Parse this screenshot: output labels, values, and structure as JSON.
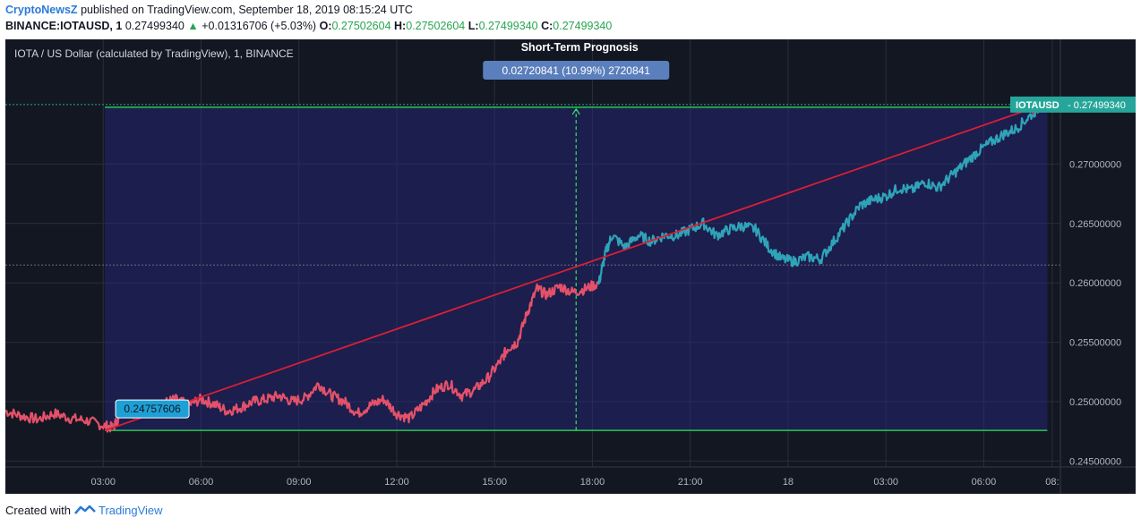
{
  "header": {
    "publisher": "CryptoNewsZ",
    "published_text": "published on TradingView.com, September 18, 2019 08:15:24 UTC",
    "symbol": "BINANCE:IOTAUSD, 1",
    "last": "0.27499340",
    "change_arrow": "▲",
    "change": "+0.01316706 (+5.03%)",
    "o_label": "O:",
    "o": "0.27502604",
    "h_label": "H:",
    "h": "0.27502604",
    "l_label": "L:",
    "l": "0.27499340",
    "c_label": "C:",
    "c": "0.27499340"
  },
  "colors": {
    "background": "#131722",
    "up": "#26a650",
    "brand": "#2a7ad9",
    "series_before": "#e4516a",
    "series_after": "#2fa3b8",
    "trend_arrow": "#d91f36",
    "range_line": "#2ee85a",
    "badge_teal": "#26a69a",
    "badge_blue": "#5b7fbd",
    "badge_start": "#1ea0d6"
  },
  "chart_data": {
    "type": "line",
    "title": "Short-Term Prognosis",
    "series_label": "IOTA / US Dollar (calculated by TradingView), 1, BINANCE",
    "last_price_label": {
      "symbol": "IOTAUSD",
      "value": "0.27499340"
    },
    "measure_label": "0.02720841 (10.99%) 2720841",
    "start_label": "0.24757606",
    "x_ticks": [
      "03:00",
      "06:00",
      "09:00",
      "12:00",
      "15:00",
      "18:00",
      "21:00",
      "18",
      "03:00",
      "06:00",
      "08:"
    ],
    "y_ticks": [
      "0.24500000",
      "0.25000000",
      "0.25500000",
      "0.26000000",
      "0.26500000",
      "0.27000000"
    ],
    "ylim": [
      0.2445,
      0.2805
    ],
    "xlim": [
      0.0,
      32.35
    ],
    "grid": true,
    "range_low": 0.24757606,
    "range_high": 0.27478447,
    "measure_x": 17.5,
    "split_x": 18.2,
    "trend": {
      "x": [
        3.05,
        31.8
      ],
      "y": [
        0.24757606,
        0.2749934
      ]
    },
    "series": [
      {
        "x": [
          0.0,
          0.5,
          1.0,
          1.5,
          2.0,
          2.5,
          3.0,
          3.3,
          3.6,
          4.0,
          4.4,
          4.8,
          5.2,
          5.6,
          6.0,
          6.4,
          6.8,
          7.2,
          7.6,
          8.0,
          8.4,
          8.8,
          9.2,
          9.6,
          10.0,
          10.4,
          10.8,
          11.2,
          11.6,
          12.0,
          12.4,
          12.8,
          13.2,
          13.6,
          14.0,
          14.4,
          14.8,
          15.2,
          15.4,
          15.7,
          16.0,
          16.3,
          16.6,
          17.0,
          17.4,
          17.8,
          18.2,
          18.4,
          18.6,
          19.0,
          19.4,
          19.8,
          20.2,
          20.6,
          21.0,
          21.4,
          21.8,
          22.2,
          22.6,
          23.0,
          23.4,
          23.8,
          24.2,
          24.6,
          25.0,
          25.4,
          25.8,
          26.2,
          26.6,
          27.0,
          27.4,
          27.8,
          28.2,
          28.6,
          29.0,
          29.4,
          29.8,
          30.2,
          30.6,
          31.0,
          31.4,
          31.8
        ],
        "y": [
          0.2492,
          0.2488,
          0.2485,
          0.249,
          0.2486,
          0.2484,
          0.248,
          0.2478,
          0.2492,
          0.249,
          0.2495,
          0.2498,
          0.2502,
          0.2497,
          0.2502,
          0.2498,
          0.2492,
          0.2495,
          0.25,
          0.2502,
          0.2505,
          0.25,
          0.2503,
          0.2515,
          0.2505,
          0.25,
          0.249,
          0.2497,
          0.2502,
          0.249,
          0.2486,
          0.2497,
          0.251,
          0.2515,
          0.2505,
          0.251,
          0.252,
          0.2535,
          0.2545,
          0.255,
          0.2575,
          0.2595,
          0.259,
          0.2597,
          0.2592,
          0.2595,
          0.26,
          0.2625,
          0.264,
          0.263,
          0.264,
          0.2635,
          0.264,
          0.264,
          0.2645,
          0.265,
          0.264,
          0.2645,
          0.2648,
          0.2645,
          0.263,
          0.262,
          0.2618,
          0.2622,
          0.262,
          0.2635,
          0.265,
          0.2665,
          0.267,
          0.2673,
          0.268,
          0.2678,
          0.2685,
          0.268,
          0.269,
          0.27,
          0.271,
          0.2718,
          0.2725,
          0.273,
          0.274,
          0.275
        ]
      }
    ]
  },
  "footer": {
    "created_with": "Created with",
    "brand": "TradingView"
  }
}
